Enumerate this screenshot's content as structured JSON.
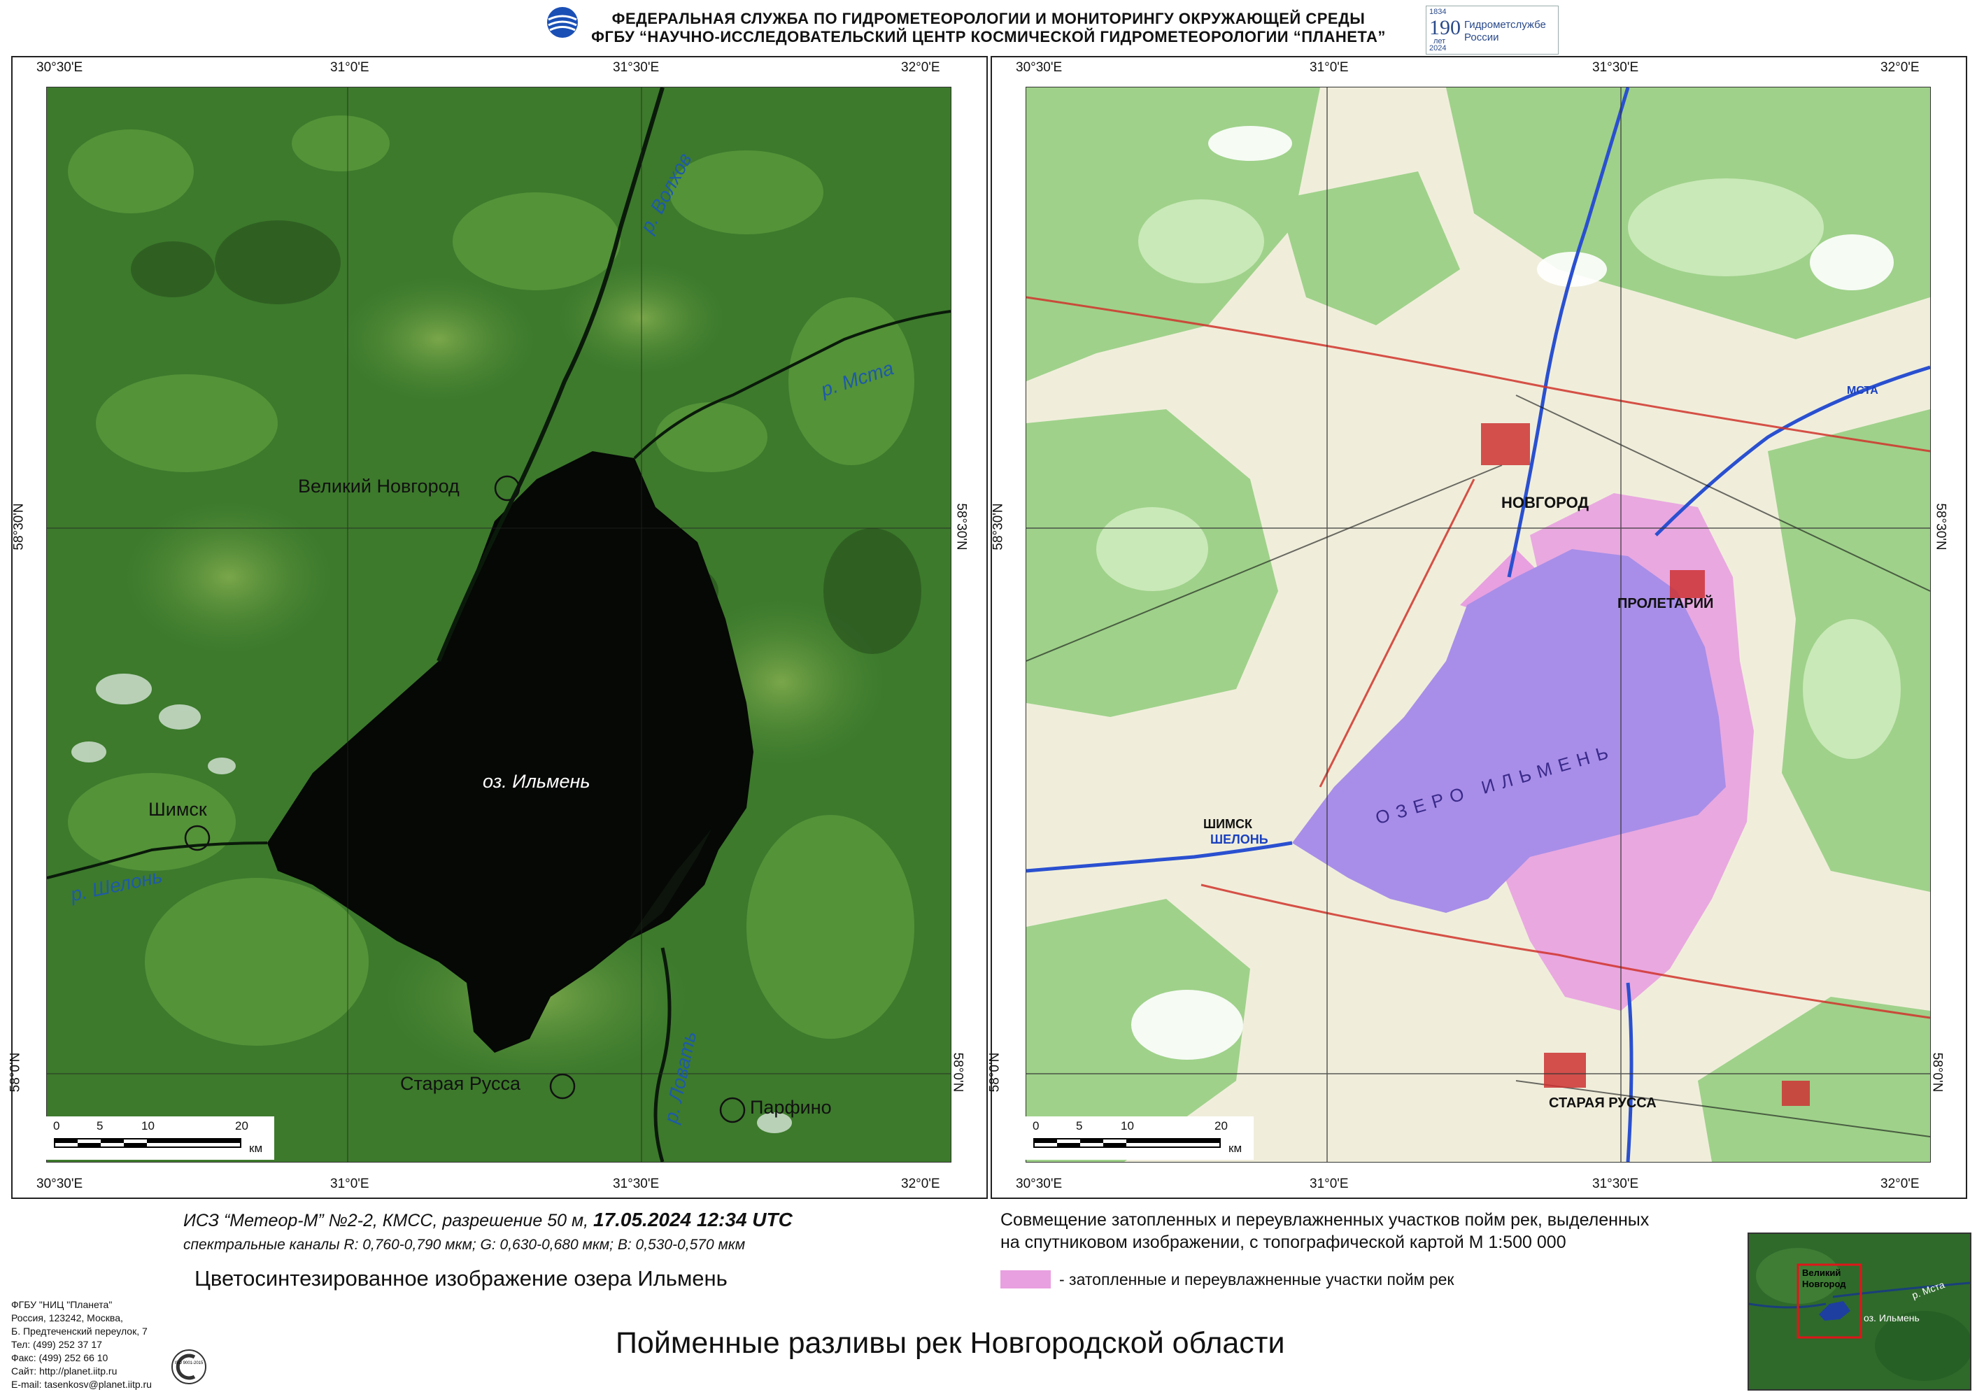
{
  "header": {
    "line1": "ФЕДЕРАЛЬНАЯ СЛУЖБА  ПО ГИДРОМЕТЕОРОЛОГИИ И МОНИТОРИНГУ ОКРУЖАЮЩЕЙ СРЕДЫ",
    "line2": "ФГБУ  “НАУЧНО-ИССЛЕДОВАТЕЛЬСКИЙ ЦЕНТР КОСМИЧЕСКОЙ ГИДРОМЕТЕОРОЛОГИИ “ПЛАНЕТА”",
    "badge_number": "190",
    "badge_years_top": "1834",
    "badge_years_bottom": "2024",
    "badge_text": "Гидрометслужбе России",
    "badge_let": "лет"
  },
  "coords": {
    "lon": [
      "30°30'E",
      "31°0'E",
      "31°30'E",
      "32°0'E"
    ],
    "lat": [
      "58°30'N",
      "58°0'N"
    ]
  },
  "left_map": {
    "lake_label": "оз. Ильмень",
    "cities": [
      "Великий Новгород",
      "Шимск",
      "Старая Русса",
      "Парфино"
    ],
    "rivers": [
      "р. Волхов",
      "р. Мста",
      "р. Шелонь",
      "р. Ловать"
    ],
    "scale": {
      "ticks": [
        "0",
        "5",
        "10",
        "20"
      ],
      "unit": "км"
    }
  },
  "right_map": {
    "lake_label": "ОЗЕРО ИЛЬМЕНЬ",
    "city_labels": [
      "НОВГОРОД",
      "СТАРАЯ РУССА",
      "ПРОЛЕТАРИЙ",
      "ШИМСК"
    ],
    "river_labels": [
      "ШЕЛОНЬ",
      "МСТА"
    ],
    "scale": {
      "ticks": [
        "0",
        "5",
        "10",
        "20"
      ],
      "unit": "км"
    },
    "inset": {
      "label1": "Великий",
      "label2": "Новгород",
      "lake": "оз. Ильмень",
      "river": "р. Мста"
    }
  },
  "captions": {
    "sat_line1_a": "ИСЗ “Метеор-М” №2-2, КМСС, разрешение 50 м, ",
    "sat_line1_b": "17.05.2024  12:34 UTC",
    "sat_line2": "спектральные каналы R: 0,760-0,790 мкм; G: 0,630-0,680 мкм; B: 0,530-0,570 мкм",
    "left_title": "Цветосинтезированное изображение озера Ильмень",
    "right_desc1": "Совмещение затопленных и переувлажненных участков пойм рек, выделенных",
    "right_desc2": "на спутниковом изображении, с топографической картой М 1:500 000",
    "legend_text": "-  затопленные и переувлажненные участки пойм рек",
    "main_title": "Пойменные разливы рек Новгородской области"
  },
  "contact": {
    "lines": [
      "ФГБУ \"НИЦ \"Планета\"",
      "Россия, 123242, Москва,",
      "Б. Предтеченский переулок, 7",
      "Тел: (499) 252 37 17",
      "Факс: (499) 252 66 10",
      "Сайт: http://planet.iitp.ru",
      "E-mail: tasenkosv@planet.iitp.ru"
    ],
    "iso_text": "ISO 9001-2015"
  },
  "colors": {
    "flood": "#e8a0e0",
    "lake_topo": "#a88ee8",
    "lake_sat": "#050805",
    "veg": "#3f7a2e",
    "river_label": "#1e5aa8"
  }
}
